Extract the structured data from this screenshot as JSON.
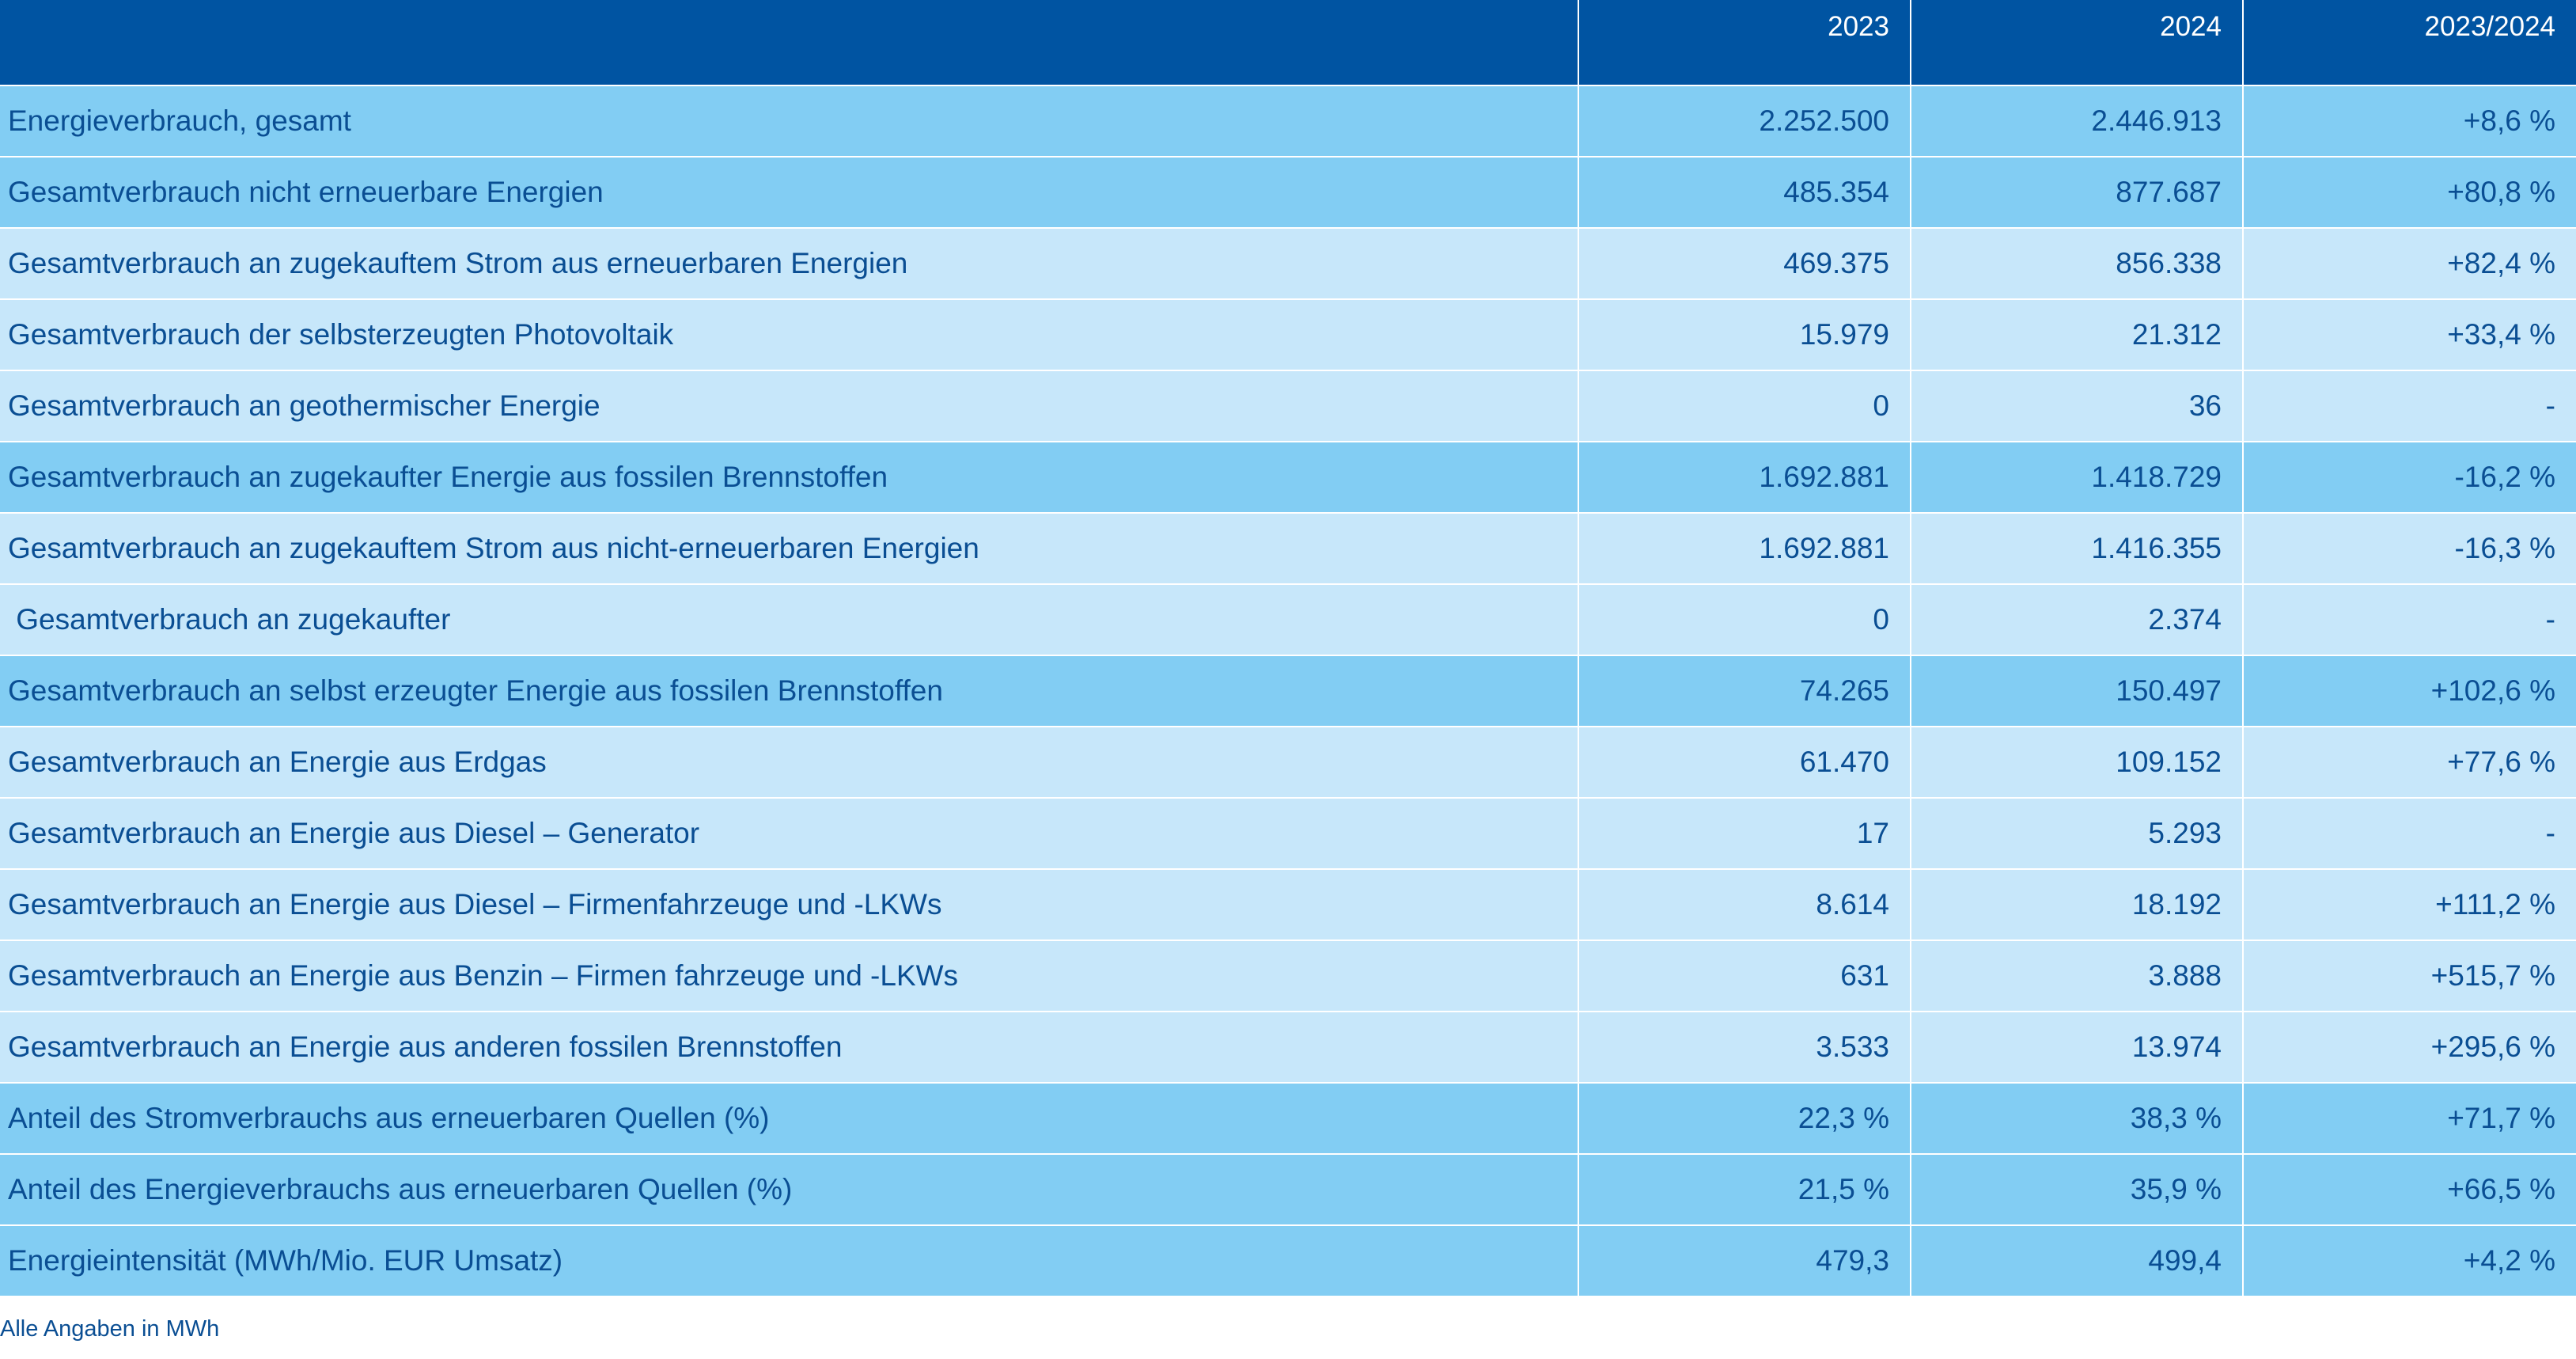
{
  "colors": {
    "header_bg": "#0054a2",
    "main_row_bg": "#82cdf3",
    "sub_row_bg": "#c7e7fa",
    "text": "#0a4e93"
  },
  "table": {
    "headers": [
      "",
      "2023",
      "2024",
      "2023/2024"
    ],
    "rows": [
      {
        "level": "main",
        "label": "Energieverbrauch, gesamt",
        "v2023": "2.252.500",
        "v2024": "2.446.913",
        "change": "+8,6 %"
      },
      {
        "level": "main",
        "label": "Gesamtverbrauch nicht erneuerbare Energien",
        "v2023": "485.354",
        "v2024": "877.687",
        "change": "+80,8 %"
      },
      {
        "level": "sub",
        "label": "Gesamtverbrauch an zugekauftem Strom aus erneuerbaren Energien",
        "v2023": "469.375",
        "v2024": "856.338",
        "change": "+82,4 %"
      },
      {
        "level": "sub",
        "label": "Gesamtverbrauch der selbsterzeugten Photovoltaik",
        "v2023": "15.979",
        "v2024": "21.312",
        "change": "+33,4 %"
      },
      {
        "level": "sub",
        "label": "Gesamtverbrauch an geothermischer Energie",
        "v2023": "0",
        "v2024": "36",
        "change": "-"
      },
      {
        "level": "main",
        "label": "Gesamtverbrauch an zugekaufter Energie aus fossilen Brennstoffen",
        "v2023": "1.692.881",
        "v2024": "1.418.729",
        "change": "-16,2 %"
      },
      {
        "level": "sub",
        "label": "Gesamtverbrauch an zugekauftem Strom aus nicht-erneuerbaren Energien",
        "v2023": "1.692.881",
        "v2024": "1.416.355",
        "change": "-16,3 %"
      },
      {
        "level": "sub",
        "label": " Gesamtverbrauch an zugekaufter",
        "v2023": "0",
        "v2024": "2.374",
        "change": "-"
      },
      {
        "level": "main",
        "label": "Gesamtverbrauch an selbst erzeugter Energie aus fossilen Brennstoffen",
        "v2023": "74.265",
        "v2024": "150.497",
        "change": "+102,6 %"
      },
      {
        "level": "sub",
        "label": "Gesamtverbrauch an Energie aus Erdgas",
        "v2023": "61.470",
        "v2024": "109.152",
        "change": "+77,6 %"
      },
      {
        "level": "sub",
        "label": "Gesamtverbrauch an Energie aus Diesel – Generator",
        "v2023": "17",
        "v2024": "5.293",
        "change": "-"
      },
      {
        "level": "sub",
        "label": "Gesamtverbrauch an Energie aus Diesel – Firmenfahrzeuge und -LKWs",
        "v2023": "8.614",
        "v2024": "18.192",
        "change": "+111,2 %"
      },
      {
        "level": "sub",
        "label": "Gesamtverbrauch an Energie aus Benzin – Firmen fahrzeuge und -LKWs",
        "v2023": "631",
        "v2024": "3.888",
        "change": "+515,7 %"
      },
      {
        "level": "sub",
        "label": "Gesamtverbrauch an Energie aus anderen fossilen Brennstoffen",
        "v2023": "3.533",
        "v2024": "13.974",
        "change": "+295,6 %"
      },
      {
        "level": "main",
        "label": "Anteil des Stromverbrauchs aus erneuerbaren Quellen (%)",
        "v2023": "22,3 %",
        "v2024": "38,3 %",
        "change": "+71,7 %"
      },
      {
        "level": "main",
        "label": "Anteil des Energieverbrauchs aus erneuerbaren Quellen (%)",
        "v2023": "21,5 %",
        "v2024": "35,9 %",
        "change": "+66,5 %"
      },
      {
        "level": "main",
        "label": "Energieintensität (MWh/Mio. EUR Umsatz)",
        "v2023": "479,3",
        "v2024": "499,4",
        "change": "+4,2 %"
      }
    ]
  },
  "footnote": "Alle Angaben in MWh"
}
